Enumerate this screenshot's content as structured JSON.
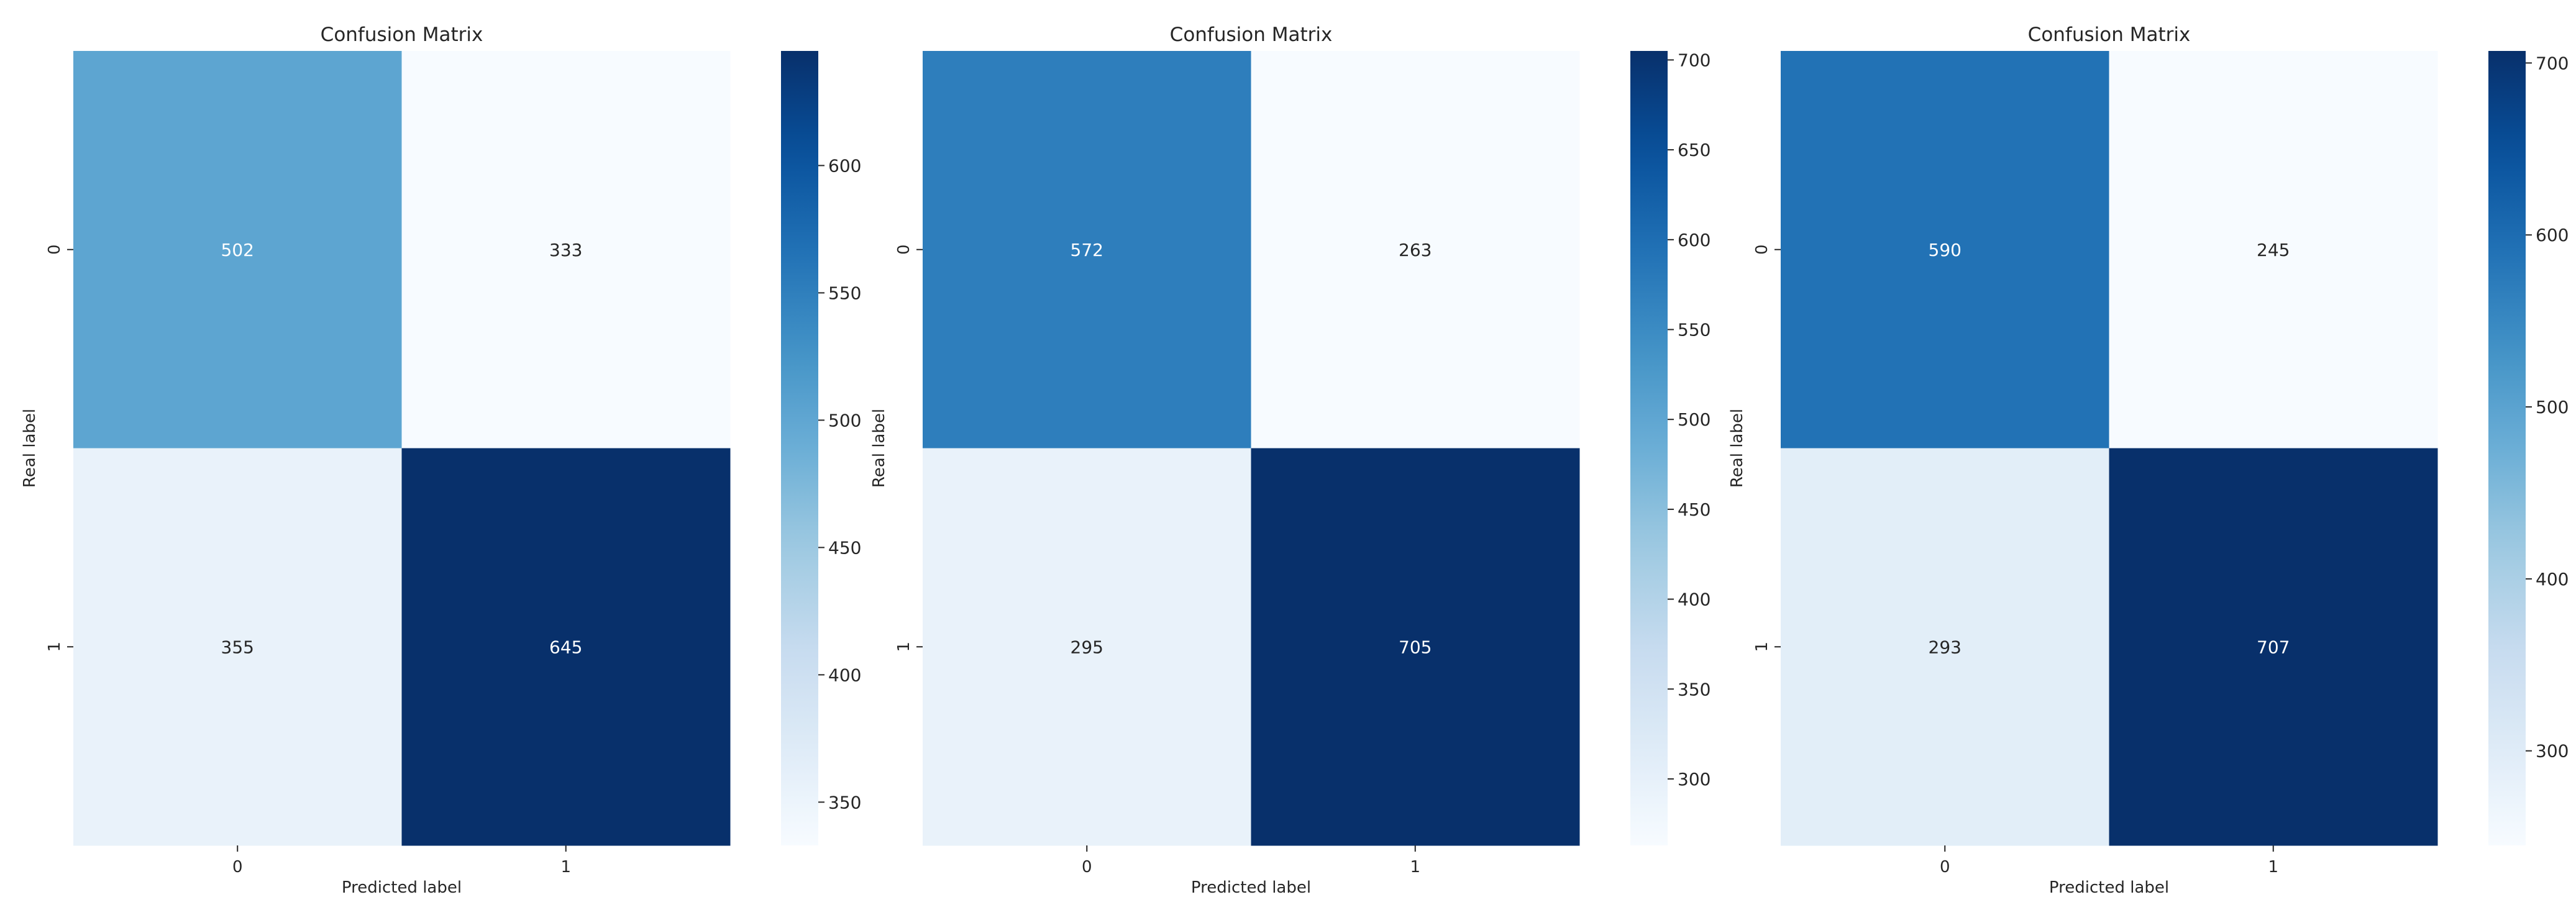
{
  "chart_data": [
    {
      "type": "heatmap",
      "title": "Confusion Matrix",
      "xlabel": "Predicted label",
      "ylabel": "Real label",
      "x_categories": [
        "0",
        "1"
      ],
      "y_categories": [
        "0",
        "1"
      ],
      "values": [
        [
          502,
          333
        ],
        [
          355,
          645
        ]
      ],
      "colormap": "Blues",
      "colorbar": {
        "range": [
          333,
          645
        ],
        "ticks": [
          350,
          400,
          450,
          500,
          550,
          600
        ]
      }
    },
    {
      "type": "heatmap",
      "title": "Confusion Matrix",
      "xlabel": "Predicted label",
      "ylabel": "Real label",
      "x_categories": [
        "0",
        "1"
      ],
      "y_categories": [
        "0",
        "1"
      ],
      "values": [
        [
          572,
          263
        ],
        [
          295,
          705
        ]
      ],
      "colormap": "Blues",
      "colorbar": {
        "range": [
          263,
          705
        ],
        "ticks": [
          300,
          350,
          400,
          450,
          500,
          550,
          600,
          650,
          700
        ]
      }
    },
    {
      "type": "heatmap",
      "title": "Confusion Matrix",
      "xlabel": "Predicted label",
      "ylabel": "Real label",
      "x_categories": [
        "0",
        "1"
      ],
      "y_categories": [
        "0",
        "1"
      ],
      "values": [
        [
          590,
          245
        ],
        [
          293,
          707
        ]
      ],
      "colormap": "Blues",
      "colorbar": {
        "range": [
          245,
          707
        ],
        "ticks": [
          300,
          400,
          500,
          600,
          700
        ]
      }
    }
  ]
}
